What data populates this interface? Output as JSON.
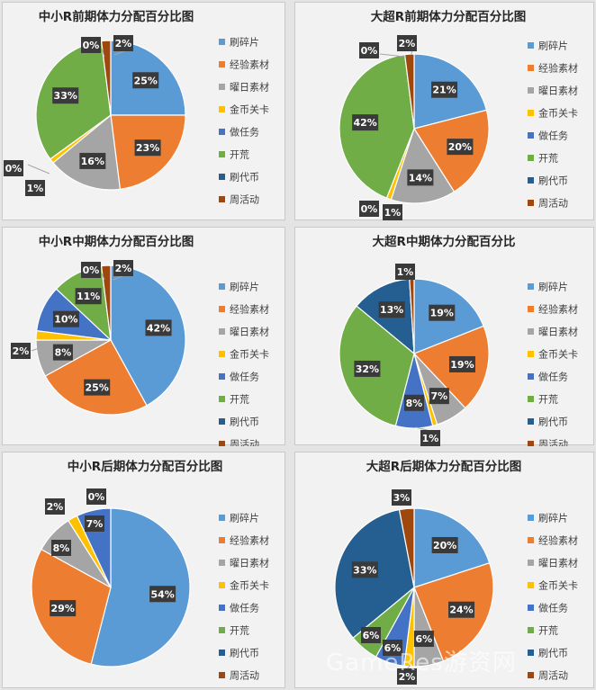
{
  "legend_names": [
    "刷碎片",
    "经验素材",
    "曜日素材",
    "金币关卡",
    "做任务",
    "开荒",
    "刷代币",
    "周活动"
  ],
  "colors": [
    "#5b9bd5",
    "#ed7d31",
    "#a5a5a5",
    "#ffc000",
    "#4472c4",
    "#70ad47",
    "#255e91",
    "#9e480e"
  ],
  "watermark": "GameRes游资网",
  "chart_data": [
    {
      "type": "pie",
      "title": "中小R前期体力分配百分比图",
      "categories": [
        "刷碎片",
        "经验素材",
        "曜日素材",
        "金币关卡",
        "做任务",
        "开荒",
        "刷代币",
        "周活动"
      ],
      "values": [
        25,
        23,
        16,
        1,
        0,
        33,
        0,
        2
      ],
      "labels": [
        "25%",
        "23%",
        "16%",
        "1%",
        "0%",
        "33%",
        "0%",
        "2%"
      ],
      "legend": "right"
    },
    {
      "type": "pie",
      "title": "大超R前期体力分配百分比图",
      "categories": [
        "刷碎片",
        "经验素材",
        "曜日素材",
        "金币关卡",
        "做任务",
        "开荒",
        "刷代币",
        "周活动"
      ],
      "values": [
        21,
        20,
        14,
        1,
        0,
        42,
        0,
        2
      ],
      "labels": [
        "21%",
        "20%",
        "14%",
        "1%",
        "0%",
        "42%",
        "0%",
        "2%"
      ],
      "legend": "right"
    },
    {
      "type": "pie",
      "title": "中小R中期体力分配百分比图",
      "categories": [
        "刷碎片",
        "经验素材",
        "曜日素材",
        "金币关卡",
        "做任务",
        "开荒",
        "刷代币",
        "周活动"
      ],
      "values": [
        42,
        25,
        8,
        2,
        10,
        11,
        0,
        2
      ],
      "labels": [
        "42%",
        "25%",
        "8%",
        "2%",
        "10%",
        "11%",
        "0%",
        "2%"
      ],
      "legend": "right"
    },
    {
      "type": "pie",
      "title": "大超R中期体力分配百分比",
      "categories": [
        "刷碎片",
        "经验素材",
        "曜日素材",
        "金币关卡",
        "做任务",
        "开荒",
        "刷代币",
        "周活动"
      ],
      "values": [
        19,
        19,
        7,
        1,
        8,
        32,
        13,
        1
      ],
      "labels": [
        "19%",
        "19%",
        "7%",
        "1%",
        "8%",
        "32%",
        "13%",
        "1%"
      ],
      "legend": "right"
    },
    {
      "type": "pie",
      "title": "中小R后期体力分配百分比图",
      "categories": [
        "刷碎片",
        "经验素材",
        "曜日素材",
        "金币关卡",
        "做任务",
        "开荒",
        "刷代币",
        "周活动"
      ],
      "values": [
        54,
        29,
        8,
        2,
        7,
        0,
        0,
        0
      ],
      "labels": [
        "54%",
        "29%",
        "8%",
        "2%",
        "7%",
        "",
        "",
        "0%"
      ],
      "legend": "right"
    },
    {
      "type": "pie",
      "title": "大超R后期体力分配百分比图",
      "categories": [
        "刷碎片",
        "经验素材",
        "曜日素材",
        "金币关卡",
        "做任务",
        "开荒",
        "刷代币",
        "周活动"
      ],
      "values": [
        20,
        24,
        6,
        2,
        6,
        6,
        33,
        3
      ],
      "labels": [
        "20%",
        "24%",
        "6%",
        "2%",
        "6%",
        "6%",
        "33%",
        "3%"
      ],
      "legend": "right"
    }
  ]
}
